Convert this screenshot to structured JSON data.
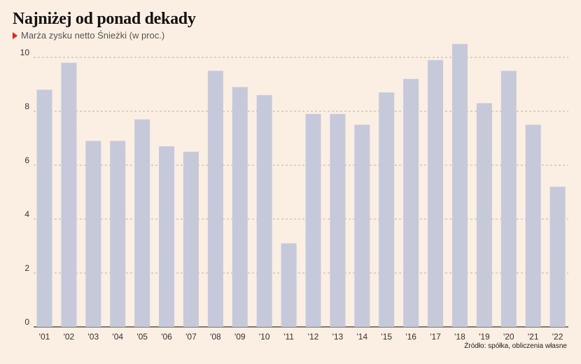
{
  "title": "Najniżej od ponad dekady",
  "subtitle": "Marża zysku netto Śnieżki (w proc.)",
  "source": "Źródło: spółka, obliczenia własne",
  "colors": {
    "bar": "#c5c9d9",
    "background": "#fbeee2",
    "grid": "#b9b1a8",
    "marker": "#e2231a"
  },
  "chart_data": {
    "type": "bar",
    "categories": [
      "'01",
      "'02",
      "'03",
      "'04",
      "'05",
      "'06",
      "'07",
      "'08",
      "'09",
      "'10",
      "'11",
      "'12",
      "'13",
      "'14",
      "'15",
      "'16",
      "'17",
      "'18",
      "'19",
      "'20",
      "'21",
      "'22"
    ],
    "values": [
      8.8,
      9.8,
      6.9,
      6.9,
      7.7,
      6.7,
      6.5,
      9.5,
      8.9,
      8.6,
      3.1,
      7.9,
      7.9,
      7.5,
      8.7,
      9.2,
      9.9,
      10.5,
      8.3,
      9.5,
      7.5,
      5.2
    ],
    "ylim": [
      0,
      10.5
    ],
    "yticks": [
      0,
      2,
      4,
      6,
      8,
      10
    ],
    "title": "Najniżej od ponad dekady",
    "xlabel": "",
    "ylabel": "",
    "grid": true
  }
}
